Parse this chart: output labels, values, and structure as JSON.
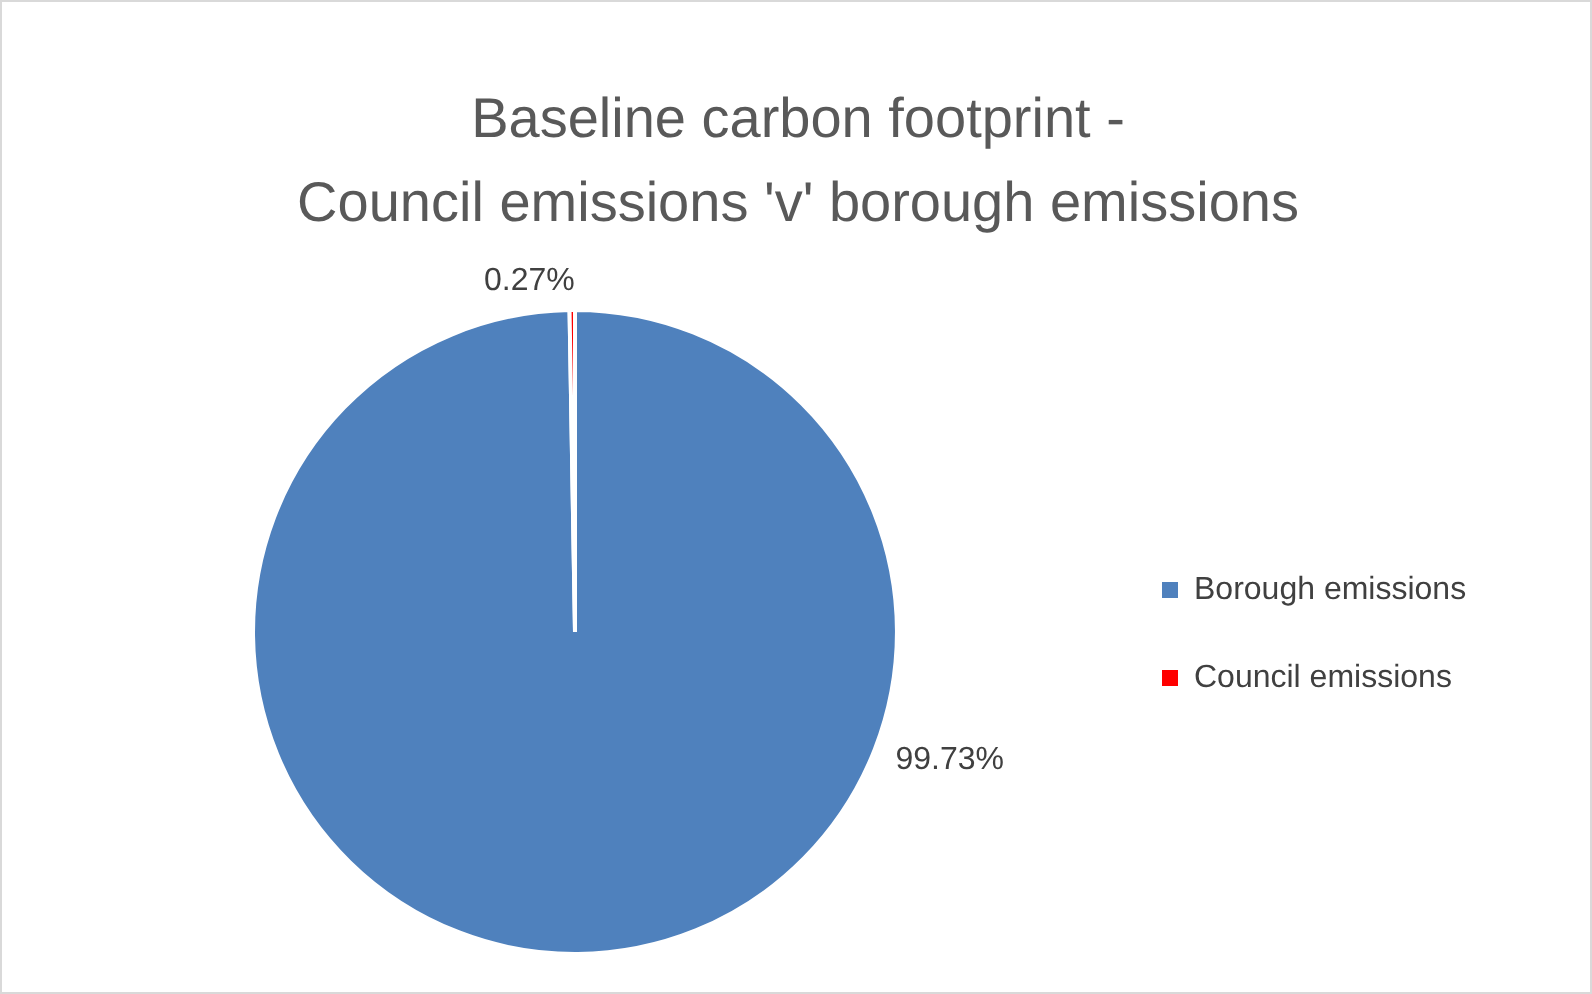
{
  "chart_data": {
    "type": "pie",
    "title": "Baseline carbon footprint -\nCouncil emissions 'v' borough emissions",
    "categories": [
      "Borough emissions",
      "Council emissions"
    ],
    "values": [
      99.73,
      0.27
    ],
    "colors": [
      "#4f81bd",
      "#ff0000"
    ],
    "value_labels": [
      "99.73%",
      "0.27%"
    ],
    "legend": "right"
  }
}
